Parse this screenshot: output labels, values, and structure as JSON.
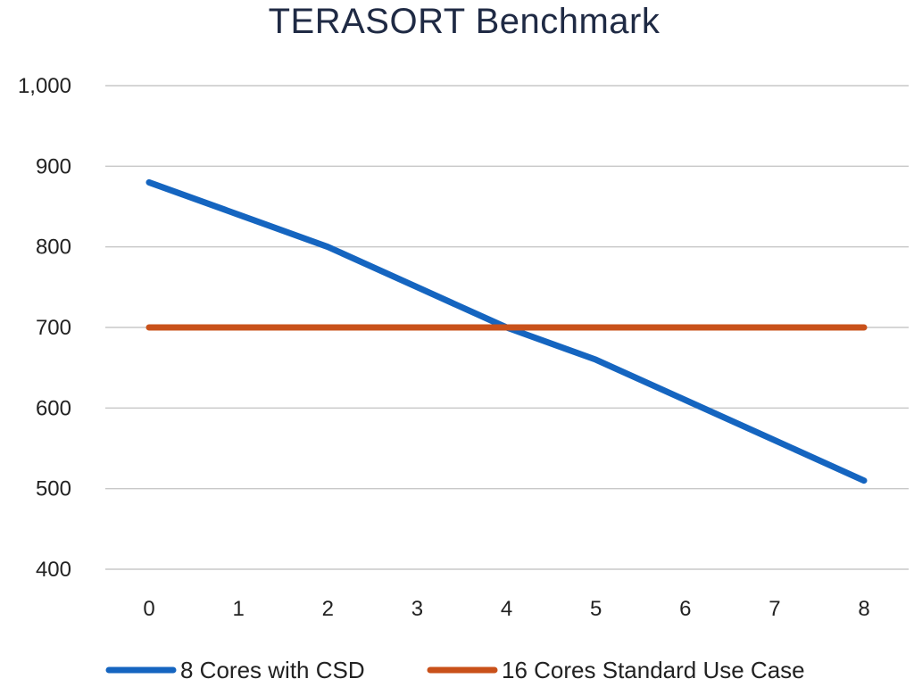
{
  "chart_data": {
    "type": "line",
    "title": "TERASORT Benchmark",
    "xlabel": "",
    "ylabel": "",
    "x": [
      0,
      1,
      2,
      3,
      4,
      5,
      6,
      7,
      8
    ],
    "ylim": [
      400,
      1000
    ],
    "yticks": [
      400,
      500,
      600,
      700,
      800,
      900,
      1000
    ],
    "ytick_labels": [
      "400",
      "500",
      "600",
      "700",
      "800",
      "900",
      "1,000"
    ],
    "xtick_labels": [
      "0",
      "1",
      "2",
      "3",
      "4",
      "5",
      "6",
      "7",
      "8"
    ],
    "grid": true,
    "legend_position": "bottom",
    "series": [
      {
        "name": "8 Cores with CSD",
        "color": "#1565c0",
        "values": [
          880,
          840,
          800,
          750,
          700,
          660,
          610,
          560,
          510
        ]
      },
      {
        "name": "16 Cores Standard Use Case",
        "color": "#c9511a",
        "values": [
          700,
          700,
          700,
          700,
          700,
          700,
          700,
          700,
          700
        ]
      }
    ]
  }
}
